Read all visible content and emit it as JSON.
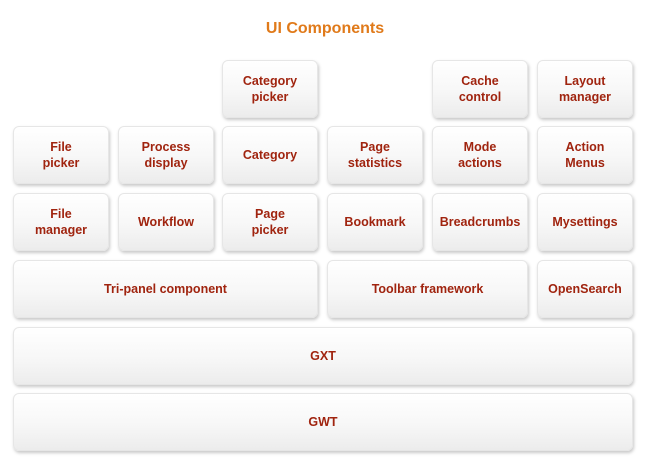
{
  "title": "UI Components",
  "rows": {
    "row1": {
      "category_picker": "Category\npicker",
      "cache_control": "Cache\ncontrol",
      "layout_manager": "Layout\nmanager"
    },
    "row2": {
      "file_picker": "File\npicker",
      "process_display": "Process\ndisplay",
      "category": "Category",
      "page_statistics": "Page\nstatistics",
      "mode_actions": "Mode\nactions",
      "action_menus": "Action\nMenus"
    },
    "row3": {
      "file_manager": "File\nmanager",
      "workflow": "Workflow",
      "page_picker": "Page\npicker",
      "bookmark": "Bookmark",
      "breadcrumbs": "Breadcrumbs",
      "mysettings": "Mysettings"
    },
    "row4": {
      "tri_panel": "Tri-panel component",
      "toolbar_framework": "Toolbar framework",
      "opensearch": "OpenSearch"
    },
    "gxt": "GXT",
    "gwt": "GWT"
  },
  "colors": {
    "title": "#e07a1a",
    "label": "#a0240f"
  }
}
